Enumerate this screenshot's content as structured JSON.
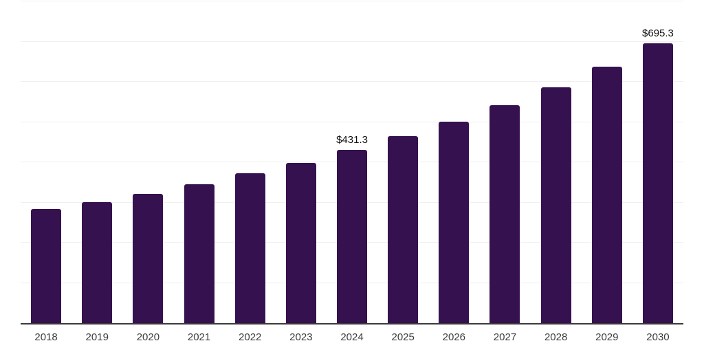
{
  "chart_data": {
    "type": "bar",
    "categories": [
      "2018",
      "2019",
      "2020",
      "2021",
      "2022",
      "2023",
      "2024",
      "2025",
      "2026",
      "2027",
      "2028",
      "2029",
      "2030"
    ],
    "values": [
      283.0,
      301.7,
      322.2,
      346.0,
      373.3,
      398.9,
      431.3,
      464.9,
      501.2,
      542.1,
      586.4,
      638.1,
      695.3
    ],
    "data_labels": {
      "2024": "$431.3",
      "2030": "$695.3"
    },
    "xlabel": "",
    "ylabel": "",
    "ylim": [
      0,
      800
    ],
    "gridline_step": 100,
    "grid": "horizontal-only",
    "y_tick_labels_visible": false,
    "legend": "none"
  },
  "style": {
    "bar_color": "#36114F",
    "gridline_color": "#f0f0f0",
    "axis_color": "#3a3a3a",
    "tick_label_color": "#3c3c3c",
    "data_label_color": "#111111",
    "background_color": "#ffffff"
  }
}
